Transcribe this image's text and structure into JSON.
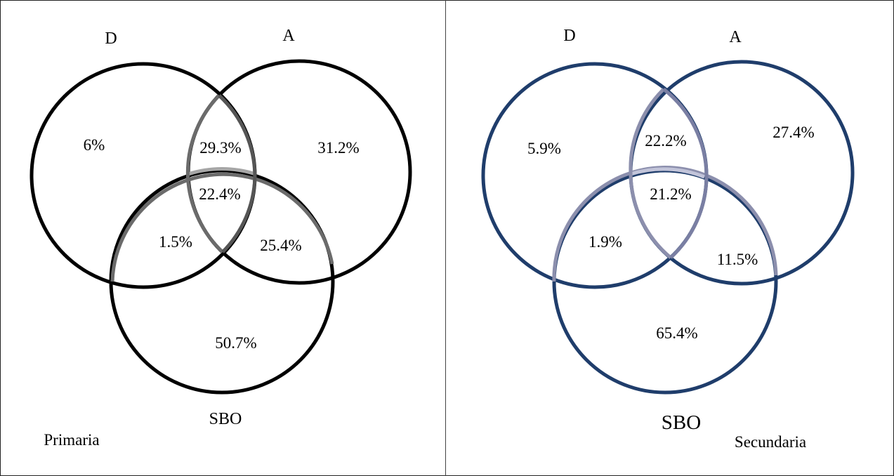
{
  "panels": {
    "primaria": {
      "caption": "Primaria",
      "set_labels": {
        "d": "D",
        "a": "A",
        "sbo": "SBO"
      },
      "regions": {
        "d_only": "6%",
        "d_a": "29.3%",
        "a_only": "31.2%",
        "d_a_sbo": "22.4%",
        "d_sbo": "1.5%",
        "a_sbo": "25.4%",
        "sbo_only": "50.7%"
      },
      "colors": {
        "main": "#000000",
        "sbo_arc": "#6b6b6b",
        "sbo_arc_light": "#a6a6a6"
      }
    },
    "secundaria": {
      "caption": "Secundaria",
      "set_labels": {
        "d": "D",
        "a": "A",
        "sbo": "SBO"
      },
      "regions": {
        "d_only": "5.9%",
        "d_a": "22.2%",
        "a_only": "27.4%",
        "d_a_sbo": "21.2%",
        "d_sbo": "1.9%",
        "a_sbo": "11.5%",
        "sbo_only": "65.4%"
      },
      "colors": {
        "main": "#1f3d6b",
        "sbo_arc": "#8c8fad",
        "sbo_arc_light": "#c2c4d9"
      }
    }
  }
}
